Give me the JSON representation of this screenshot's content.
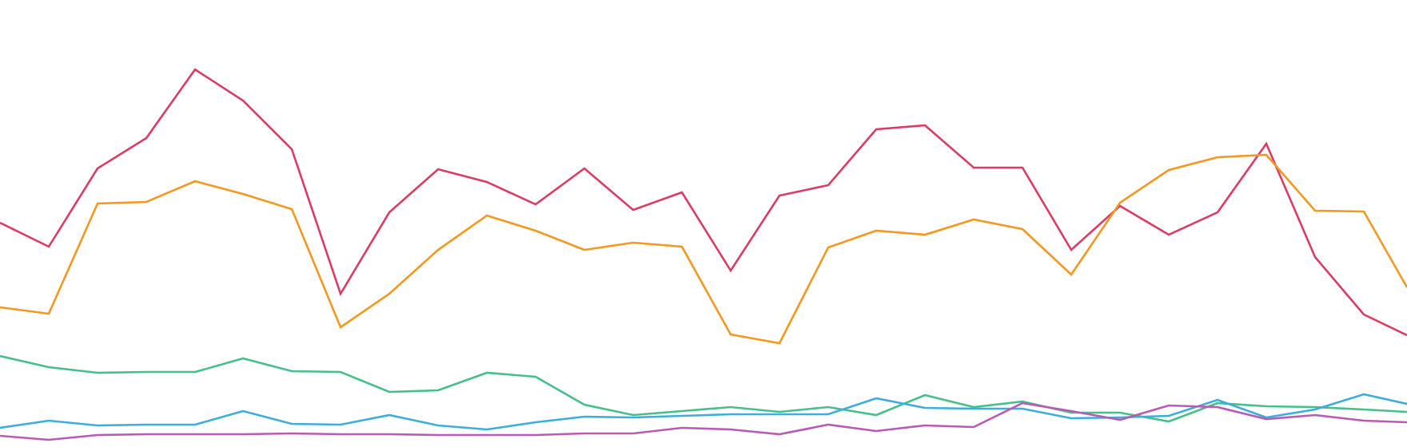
{
  "chart_data": {
    "type": "line",
    "title": "",
    "xlabel": "",
    "ylabel": "",
    "grid": false,
    "legend": "none",
    "ylim": [
      0,
      560
    ],
    "x": [
      0,
      61,
      122,
      183,
      244,
      304,
      365,
      426,
      487,
      548,
      609,
      670,
      731,
      792,
      853,
      914,
      975,
      1036,
      1096,
      1157,
      1218,
      1279,
      1340,
      1401,
      1462,
      1523,
      1584,
      1645,
      1706,
      1760
    ],
    "series": [
      {
        "color": "#dc3c64",
        "values": [
          281,
          251,
          349,
          387,
          473,
          434,
          373,
          192,
          294,
          348,
          332,
          304,
          349,
          297,
          319,
          221,
          315,
          328,
          398,
          403,
          350,
          350,
          247,
          302,
          266,
          294,
          380,
          238,
          166,
          140
        ]
      },
      {
        "color": "#f4981f",
        "values": [
          175,
          167,
          305,
          307,
          333,
          317,
          298,
          150,
          192,
          247,
          290,
          271,
          247,
          256,
          251,
          141,
          130,
          250,
          271,
          266,
          285,
          273,
          216,
          306,
          347,
          363,
          366,
          296,
          295,
          200
        ]
      },
      {
        "color": "#45c08a",
        "values": [
          114,
          100,
          93,
          94,
          94,
          111,
          95,
          94,
          69,
          71,
          93,
          88,
          53,
          40,
          45,
          50,
          44,
          50,
          40,
          65,
          50,
          57,
          43,
          43,
          32,
          55,
          51,
          50,
          47,
          44
        ]
      },
      {
        "color": "#3daedc",
        "values": [
          24,
          33,
          27,
          28,
          28,
          45,
          29,
          28,
          40,
          27,
          22,
          31,
          38,
          37,
          39,
          41,
          41,
          41,
          61,
          49,
          48,
          48,
          36,
          37,
          39,
          59,
          37,
          47,
          66,
          54
        ]
      },
      {
        "color": "#b95ab4",
        "values": [
          14,
          9,
          15,
          16,
          16,
          16,
          17,
          16,
          16,
          15,
          15,
          15,
          17,
          17,
          24,
          22,
          16,
          28,
          20,
          27,
          25,
          55,
          45,
          34,
          52,
          50,
          35,
          40,
          33,
          31
        ]
      }
    ]
  }
}
